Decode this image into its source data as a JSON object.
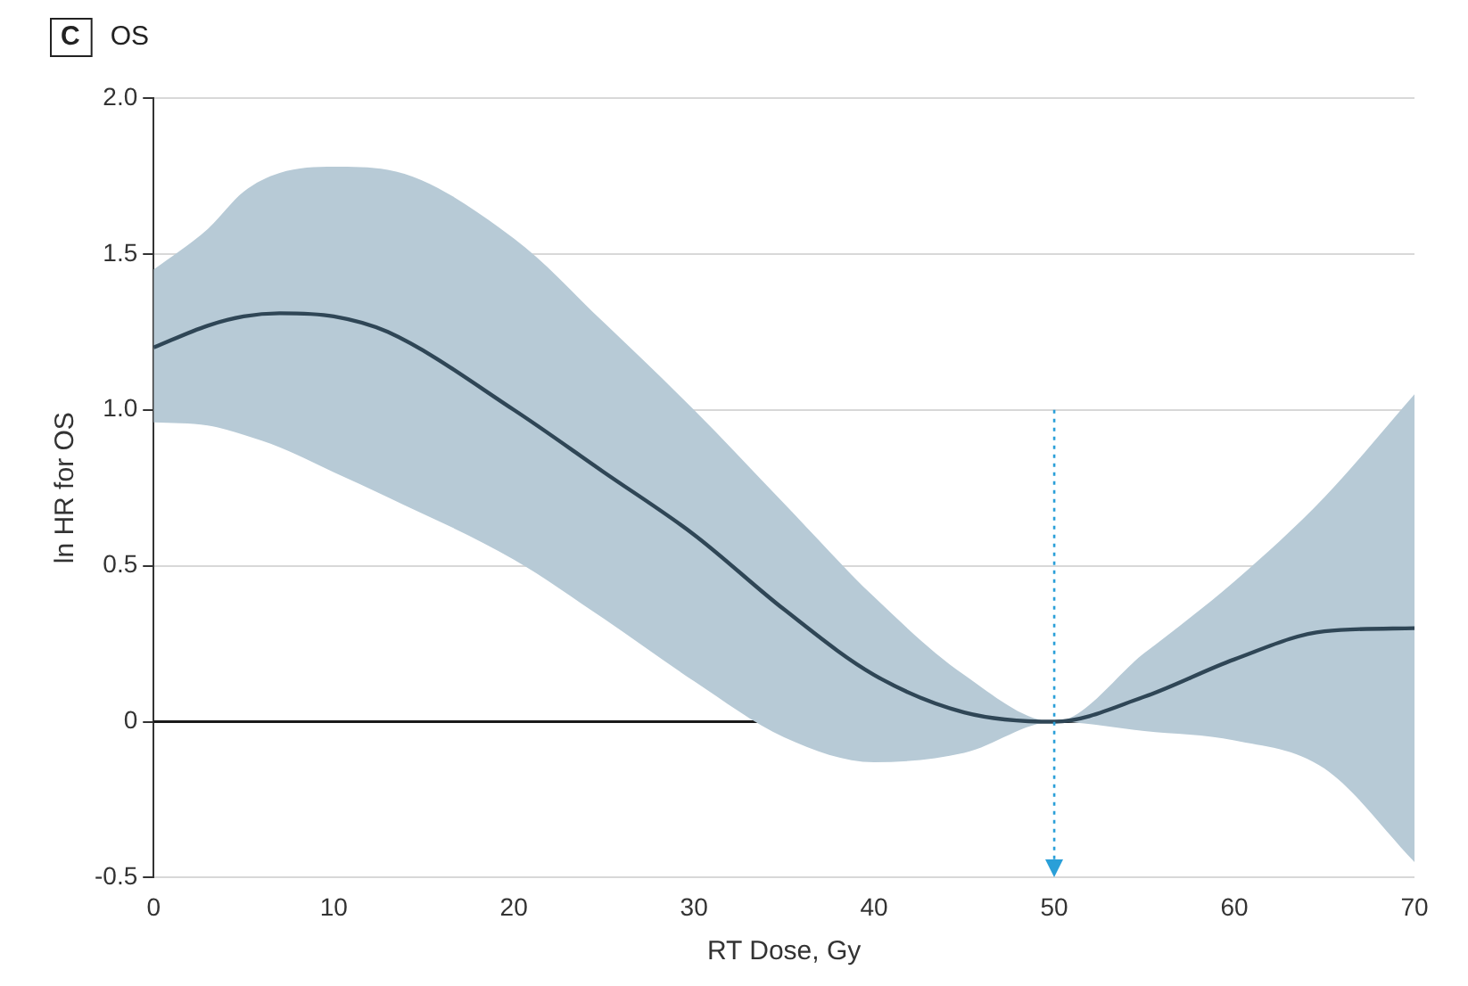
{
  "chart_data": {
    "type": "line",
    "title": "OS",
    "annotations": [
      "C"
    ],
    "xlabel": "RT Dose, Gy",
    "ylabel": "ln HR for OS",
    "x": [
      0,
      3,
      5,
      7,
      10,
      13,
      20,
      25,
      30,
      35,
      40,
      45,
      50,
      55,
      60,
      65,
      70
    ],
    "series": [
      {
        "color": "#2f4656",
        "values": [
          1.2,
          1.27,
          1.3,
          1.31,
          1.3,
          1.25,
          1.0,
          0.8,
          0.6,
          0.36,
          0.15,
          0.03,
          0,
          0.08,
          0.2,
          0.29,
          0.3
        ],
        "lower": [
          0.96,
          0.95,
          0.92,
          0.88,
          0.8,
          0.72,
          0.52,
          0.33,
          0.13,
          -0.05,
          -0.13,
          -0.1,
          0,
          -0.03,
          -0.06,
          -0.15,
          -0.45
        ],
        "upper": [
          1.45,
          1.58,
          1.7,
          1.76,
          1.78,
          1.77,
          1.55,
          1.28,
          1.0,
          0.7,
          0.4,
          0.15,
          0,
          0.22,
          0.45,
          0.72,
          1.05
        ]
      }
    ],
    "xlim": [
      0,
      70
    ],
    "xticks": [
      0,
      10,
      20,
      30,
      40,
      50,
      60,
      70
    ],
    "ylim": [
      -0.5,
      2.0
    ],
    "yticks": [
      {
        "value": 2,
        "label": "2.0"
      },
      {
        "value": 1.5,
        "label": "1.5"
      },
      {
        "value": 1,
        "label": "1.0"
      },
      {
        "value": 0.5,
        "label": "0.5"
      },
      0,
      {
        "value": -0.5,
        "label": "-0.5"
      }
    ],
    "ref_lines": [
      {
        "axis": "y",
        "value": 0,
        "color": "#1a1a1a",
        "line_style": "solid"
      },
      {
        "axis": "x",
        "value": 50,
        "color": "#2a9fd8",
        "line_style": "dotted"
      }
    ],
    "grid": "y",
    "marker": "none"
  }
}
